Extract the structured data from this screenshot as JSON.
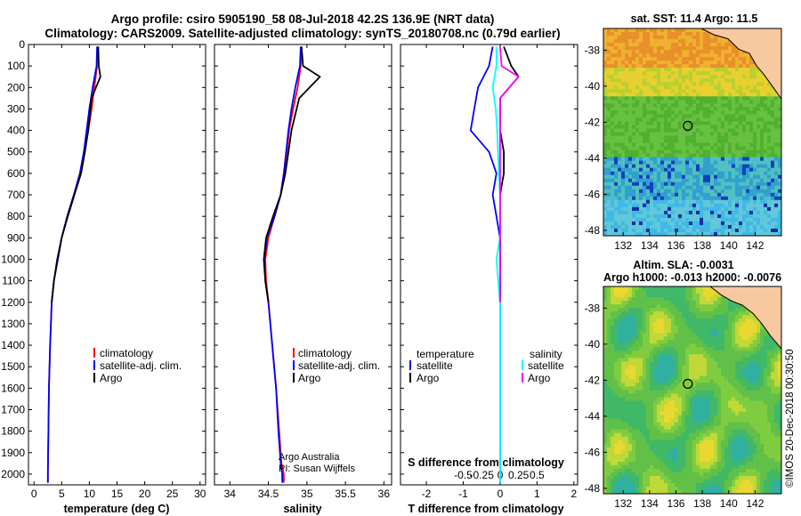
{
  "header": {
    "line1": "Argo profile: csiro 5905190_58 08-Jul-2018 42.2S 136.9E (NRT data)",
    "line2": "Climatology: CARS2009. Satellite-adjusted climatology: synTS_20180708.nc (0.79d earlier)"
  },
  "credit": "©IMOS 20-Dec-2018 00:30:50",
  "colors": {
    "clim": "#ff0000",
    "sat": "#0000ff",
    "argo": "#000000",
    "sal_sat": "#00ffff",
    "sal_argo": "#ff00ff",
    "land": "#f8c8a0"
  },
  "chart_data": [
    {
      "type": "line",
      "id": "temperature",
      "xlabel": "temperature (deg C)",
      "ylabel": "",
      "xlim": [
        -1,
        31
      ],
      "ylim": [
        2050,
        0
      ],
      "y_reversed": true,
      "xticks": [
        0,
        5,
        10,
        15,
        20,
        25,
        30
      ],
      "yticks": [
        0,
        100,
        200,
        300,
        400,
        500,
        600,
        700,
        800,
        900,
        1000,
        1100,
        1200,
        1300,
        1400,
        1500,
        1600,
        1700,
        1800,
        1900,
        2000
      ],
      "legend": {
        "position": "middle-left",
        "entries": [
          "climatology",
          "satellite-adj. clim.",
          "Argo"
        ]
      },
      "series": [
        {
          "name": "climatology",
          "color": "#ff0000",
          "x": [
            11.5,
            11.4,
            10.9,
            10.4,
            9.8,
            9.1,
            8.3,
            7.2,
            6.0,
            5.0,
            4.3,
            3.6,
            3.2,
            2.9,
            2.7,
            2.6,
            2.5,
            2.5
          ],
          "y": [
            10,
            100,
            200,
            300,
            400,
            500,
            600,
            700,
            800,
            900,
            1000,
            1100,
            1200,
            1400,
            1600,
            1800,
            2000,
            2040
          ]
        },
        {
          "name": "satellite-adj. clim.",
          "color": "#0000ff",
          "x": [
            11.4,
            11.3,
            10.6,
            10.0,
            9.5,
            9.0,
            8.3,
            7.2,
            6.0,
            5.0,
            4.3,
            3.6,
            3.2,
            2.9,
            2.7,
            2.6,
            2.5,
            2.5
          ],
          "y": [
            10,
            100,
            200,
            300,
            400,
            500,
            600,
            700,
            800,
            900,
            1000,
            1100,
            1200,
            1400,
            1600,
            1800,
            2000,
            2040
          ]
        },
        {
          "name": "Argo",
          "color": "#000000",
          "x": [
            11.6,
            11.7,
            12.0,
            10.4,
            9.8,
            9.2,
            8.5,
            7.3,
            6.1,
            5.0,
            4.2,
            3.6,
            3.2
          ],
          "y": [
            10,
            100,
            150,
            250,
            400,
            500,
            600,
            700,
            800,
            900,
            1000,
            1100,
            1200
          ]
        }
      ]
    },
    {
      "type": "line",
      "id": "salinity",
      "xlabel": "salinity",
      "ylabel": "",
      "xlim": [
        33.8,
        36.1
      ],
      "ylim": [
        2050,
        0
      ],
      "y_reversed": true,
      "xticks": [
        34,
        34.5,
        35,
        35.5,
        36
      ],
      "xticklabels": [
        "34",
        "34.5",
        "35",
        "35.5",
        "36"
      ],
      "legend": {
        "position": "middle-right",
        "entries": [
          "climatology",
          "satellite-adj. clim.",
          "Argo"
        ]
      },
      "annotation": [
        "Argo Australia",
        "PI: Susan Wijffels"
      ],
      "series": [
        {
          "name": "climatology",
          "color": "#ff0000",
          "x": [
            34.93,
            34.92,
            34.88,
            34.82,
            34.77,
            34.74,
            34.7,
            34.66,
            34.58,
            34.5,
            34.46,
            34.47,
            34.5,
            34.55,
            34.6,
            34.64,
            34.67,
            34.7,
            34.7
          ],
          "y": [
            10,
            100,
            200,
            300,
            400,
            500,
            600,
            700,
            800,
            900,
            1000,
            1100,
            1200,
            1400,
            1600,
            1800,
            1950,
            2000,
            2040
          ]
        },
        {
          "name": "satellite-adj. clim.",
          "color": "#0000ff",
          "x": [
            34.92,
            34.91,
            34.85,
            34.8,
            34.76,
            34.73,
            34.7,
            34.66,
            34.58,
            34.48,
            34.45,
            34.46,
            34.5,
            34.55,
            34.6,
            34.63,
            34.66,
            34.68,
            34.68
          ],
          "y": [
            10,
            100,
            200,
            300,
            400,
            500,
            600,
            700,
            800,
            900,
            1000,
            1100,
            1200,
            1400,
            1600,
            1800,
            1950,
            2000,
            2040
          ]
        },
        {
          "name": "Argo",
          "color": "#000000",
          "x": [
            34.93,
            34.95,
            35.17,
            34.9,
            34.8,
            34.76,
            34.72,
            34.66,
            34.56,
            34.47,
            34.44,
            34.46,
            34.5
          ],
          "y": [
            10,
            100,
            150,
            250,
            400,
            500,
            600,
            700,
            800,
            900,
            1000,
            1100,
            1200
          ]
        }
      ]
    },
    {
      "type": "line",
      "id": "difference",
      "xlabel": "T difference from climatology",
      "xlabel2": "S difference from climatology",
      "xlim": [
        -2.7,
        2.1
      ],
      "ylim": [
        2050,
        0
      ],
      "y_reversed": true,
      "xticks": [
        -2,
        -1,
        0,
        1,
        2
      ],
      "s_xticks": [
        -0.5,
        -0.25,
        0,
        0.25,
        0.5
      ],
      "s_xticklabels": [
        "-0.5",
        "-0.25",
        "0",
        "0.25",
        "0.5"
      ],
      "legend": {
        "position": "middle",
        "temperature_header": "temperature",
        "salinity_header": "salinity",
        "entries": [
          "satellite",
          "Argo",
          "satellite",
          "Argo"
        ]
      },
      "series": [
        {
          "name": "temperature satellite",
          "color": "#0000ff",
          "x": [
            -0.2,
            -0.3,
            -0.6,
            -0.7,
            -0.8,
            -0.3,
            -0.1,
            -0.2,
            -0.1,
            0.0,
            0.0,
            0.0,
            0.0,
            0.0
          ],
          "y": [
            10,
            100,
            200,
            300,
            400,
            500,
            600,
            700,
            800,
            900,
            1000,
            1200,
            1600,
            2040
          ]
        },
        {
          "name": "temperature Argo",
          "color": "#000000",
          "x": [
            0.1,
            0.3,
            0.5,
            0.0,
            0.0,
            0.1,
            0.1,
            0.0,
            0.0,
            0.0,
            0.0,
            0.0
          ],
          "y": [
            10,
            100,
            150,
            250,
            400,
            500,
            600,
            700,
            800,
            900,
            1000,
            1200
          ]
        },
        {
          "name": "salinity satellite",
          "color": "#00ffff",
          "x": [
            -0.05,
            -0.05,
            -0.1,
            -0.06,
            -0.04,
            -0.03,
            0.0,
            0.0,
            -0.05,
            0.0,
            0.0,
            0.0
          ],
          "y": [
            10,
            100,
            200,
            300,
            400,
            500,
            700,
            900,
            1000,
            1200,
            1600,
            2040
          ]
        },
        {
          "name": "salinity Argo",
          "color": "#ff00ff",
          "x": [
            0.0,
            0.02,
            0.25,
            0.0,
            0.0,
            0.0,
            0.0
          ],
          "y": [
            10,
            100,
            150,
            250,
            400,
            600,
            1200
          ]
        }
      ]
    },
    {
      "type": "heatmap",
      "id": "sst_map",
      "title": "sat. SST: 11.4 Argo: 11.5",
      "xticks": [
        132,
        134,
        136,
        138,
        140,
        142
      ],
      "yticks": [
        -38,
        -40,
        -42,
        -44,
        -46,
        -48
      ],
      "marker": {
        "lon": 136.9,
        "lat": -42.2
      }
    },
    {
      "type": "heatmap",
      "id": "sla_map",
      "title": "Altim. SLA: -0.0031",
      "subtitle": "Argo h1000: -0.013 h2000: -0.0076",
      "xticks": [
        132,
        134,
        136,
        138,
        140,
        142
      ],
      "yticks": [
        -38,
        -40,
        -42,
        -44,
        -46,
        -48
      ],
      "marker": {
        "lon": 136.9,
        "lat": -42.2
      }
    }
  ]
}
